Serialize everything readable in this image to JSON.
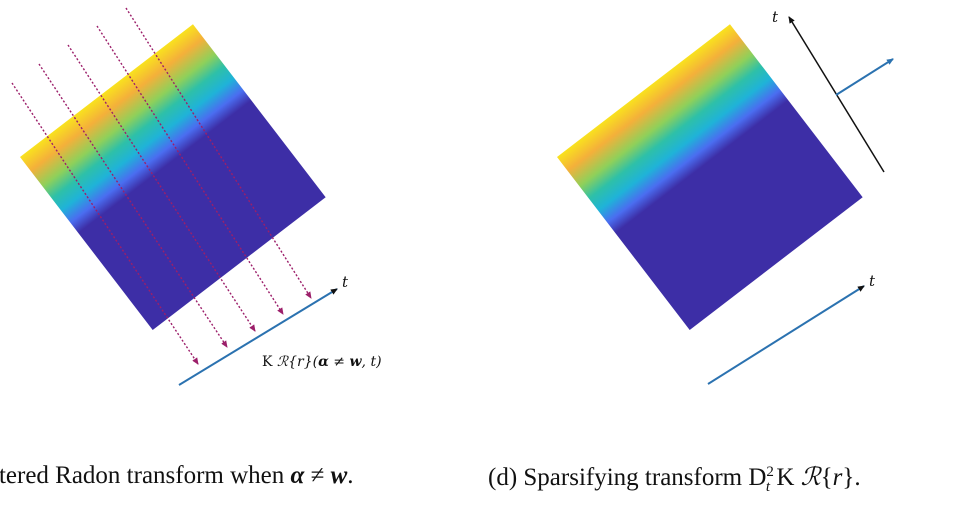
{
  "panel_c": {
    "t_axis_label": "t",
    "transform_label_prefix": "K ",
    "transform_label_script": "ℛ",
    "transform_label_r": "{r}(",
    "transform_label_alpha": "α",
    "transform_label_neq": " ≠ ",
    "transform_label_w": "w",
    "transform_label_end": ", t)"
  },
  "panel_d": {
    "t_axis_label_top": "t",
    "t_axis_label_bottom": "t"
  },
  "captions": {
    "c_text": "ltered Radon transform when ",
    "c_alpha": "α",
    "c_neq": " ≠ ",
    "c_w": "w",
    "c_end": ".",
    "d_text": "(d) Sparsifying transform D",
    "d_sup": "2",
    "d_sub": "t",
    "d_mid": " K ",
    "d_script": "ℛ",
    "d_end_brace_open": "{",
    "d_r": "r",
    "d_end": "}."
  },
  "colors": {
    "field_top": "#f9e21e",
    "field_orange": "#f4b03a",
    "field_green": "#4cc08a",
    "field_cyan": "#1fb3d8",
    "field_blue": "#4a6df0",
    "field_base": "#3d2ea6",
    "axis_blue": "#2b72b0",
    "ray_color": "#9c1f6a",
    "axis_black": "#111111"
  }
}
